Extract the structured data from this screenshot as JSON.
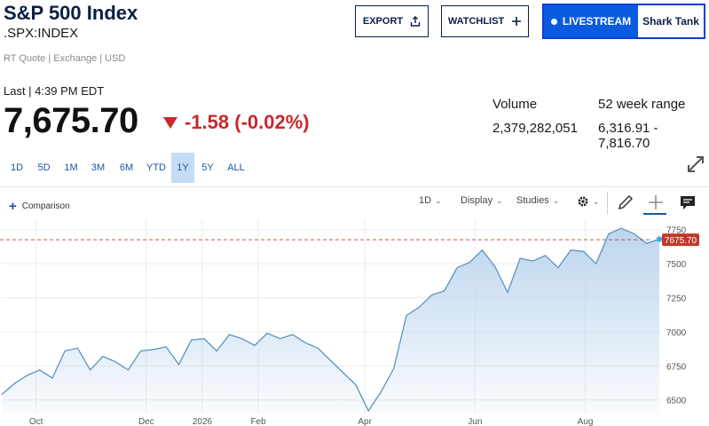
{
  "header": {
    "title": "S&P 500 Index",
    "symbol": ".SPX:INDEX",
    "meta": "RT Quote | Exchange | USD"
  },
  "actions": {
    "export_label": "EXPORT",
    "watchlist_label": "WATCHLIST",
    "livestream_label": "LIVESTREAM",
    "show_label": "Shark Tank"
  },
  "quote": {
    "last_line": "Last | 4:39 PM EDT",
    "price": "7,675.70",
    "change": "-1.58 (-0.02%)",
    "direction": "down"
  },
  "stats": {
    "volume_label": "Volume",
    "volume_value": "2,379,282,051",
    "range_label": "52 week range",
    "range_value": "6,316.91 - 7,816.70"
  },
  "range_tabs": [
    "1D",
    "5D",
    "1M",
    "3M",
    "6M",
    "YTD",
    "1Y",
    "5Y",
    "ALL"
  ],
  "active_range": "1Y",
  "chart_toolbar": {
    "comparison_label": "Comparison",
    "interval_label": "1D",
    "display_label": "Display",
    "studies_label": "Studies"
  },
  "colors": {
    "line": "#5b93c4",
    "fill_top": "#b9d3ec",
    "last_price_tag": "#c0392b",
    "negative": "#c8282d",
    "accent": "#0a5be0"
  },
  "chart_data": {
    "type": "area",
    "last_price_label": "7675.70",
    "x_tick_labels": [
      "Oct",
      "Dec",
      "2026",
      "Feb",
      "Apr",
      "Jun",
      "Aug"
    ],
    "y_tick_values": [
      6500,
      6750,
      7000,
      7250,
      7500,
      7750
    ],
    "ylim": [
      6400,
      7820
    ],
    "grid": true,
    "series": [
      {
        "x": [
          "2025-09-12",
          "2025-09-19",
          "2025-09-26",
          "2025-10-03",
          "2025-10-10",
          "2025-10-17",
          "2025-10-24",
          "2025-10-31",
          "2025-11-07",
          "2025-11-14",
          "2025-11-21",
          "2025-11-28",
          "2025-12-05",
          "2025-12-12",
          "2025-12-19",
          "2025-12-26",
          "2026-01-02",
          "2026-01-09",
          "2026-01-16",
          "2026-01-23",
          "2026-01-30",
          "2026-02-06",
          "2026-02-13",
          "2026-02-20",
          "2026-02-27",
          "2026-03-06",
          "2026-03-13",
          "2026-03-20",
          "2026-03-27",
          "2026-04-03",
          "2026-04-10",
          "2026-04-17",
          "2026-04-24",
          "2026-05-01",
          "2026-05-08",
          "2026-05-15",
          "2026-05-22",
          "2026-05-29",
          "2026-06-05",
          "2026-06-12",
          "2026-06-19",
          "2026-06-26",
          "2026-07-03",
          "2026-07-10",
          "2026-07-17",
          "2026-07-24",
          "2026-07-31",
          "2026-08-07",
          "2026-08-14",
          "2026-08-21",
          "2026-08-28",
          "2026-09-04",
          "2026-09-11"
        ],
        "y": [
          6540,
          6620,
          6680,
          6720,
          6660,
          6860,
          6880,
          6720,
          6820,
          6780,
          6720,
          6860,
          6870,
          6890,
          6760,
          6940,
          6950,
          6860,
          6980,
          6950,
          6900,
          6990,
          6950,
          6980,
          6920,
          6880,
          6790,
          6700,
          6610,
          6420,
          6560,
          6730,
          7120,
          7180,
          7270,
          7300,
          7470,
          7510,
          7600,
          7480,
          7290,
          7540,
          7520,
          7560,
          7470,
          7600,
          7590,
          7500,
          7720,
          7760,
          7720,
          7650,
          7680
        ]
      }
    ]
  }
}
